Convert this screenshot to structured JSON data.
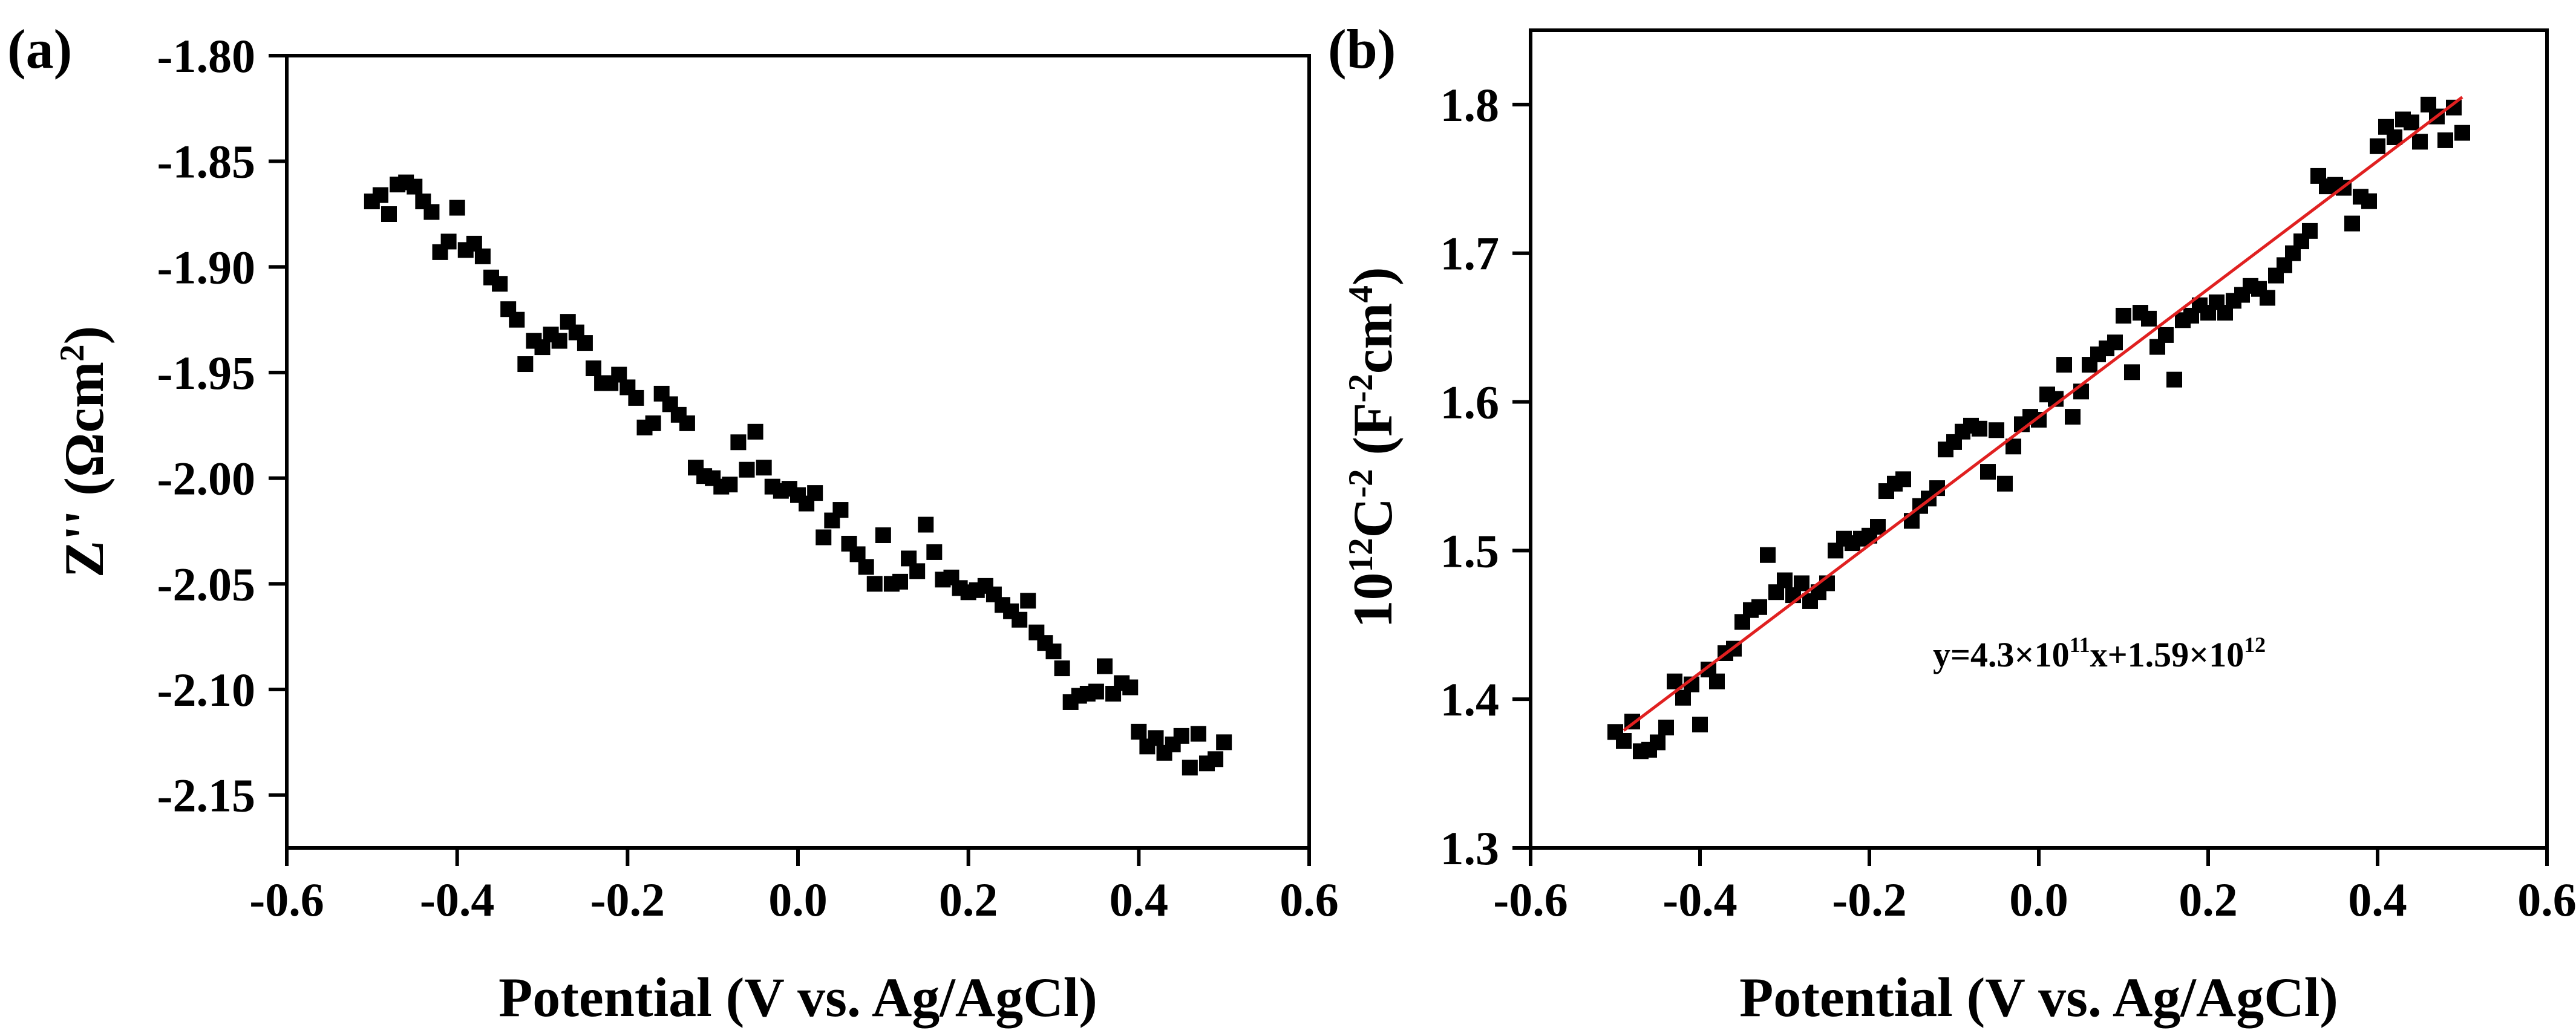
{
  "chart_data": [
    {
      "panel_label": "(a)",
      "type": "scatter",
      "xlabel": "Potential (V vs. Ag/AgCl)",
      "ylabel": "Z'' (Ωcm²)",
      "ylabel_parts": {
        "main": "Z'' (Ωcm",
        "sup": "2",
        "end": ")"
      },
      "xlim": [
        -0.6,
        0.6
      ],
      "ylim": [
        -2.175,
        -1.8
      ],
      "x_ticks": [
        -0.6,
        -0.4,
        -0.2,
        0.0,
        0.2,
        0.4,
        0.6
      ],
      "x_tick_labels": [
        "-0.6",
        "-0.4",
        "-0.2",
        "0.0",
        "0.2",
        "0.4",
        "0.6"
      ],
      "y_ticks": [
        -1.8,
        -1.85,
        -1.9,
        -1.95,
        -2.0,
        -2.05,
        -2.1,
        -2.15
      ],
      "y_tick_labels": [
        "-1.80",
        "-1.85",
        "-1.90",
        "-1.95",
        "-2.00",
        "-2.05",
        "-2.10",
        "-2.15"
      ],
      "marker_color": "#000000",
      "series": [
        {
          "name": "Z''",
          "x": [
            -0.5,
            -0.49,
            -0.48,
            -0.47,
            -0.46,
            -0.45,
            -0.44,
            -0.43,
            -0.42,
            -0.41,
            -0.4,
            -0.39,
            -0.38,
            -0.37,
            -0.36,
            -0.35,
            -0.34,
            -0.33,
            -0.32,
            -0.31,
            -0.3,
            -0.29,
            -0.28,
            -0.27,
            -0.26,
            -0.25,
            -0.24,
            -0.23,
            -0.22,
            -0.21,
            -0.2,
            -0.19,
            -0.18,
            -0.17,
            -0.16,
            -0.15,
            -0.14,
            -0.13,
            -0.12,
            -0.11,
            -0.1,
            -0.09,
            -0.08,
            -0.07,
            -0.06,
            -0.05,
            -0.04,
            -0.03,
            -0.02,
            -0.01,
            0.0,
            0.01,
            0.02,
            0.03,
            0.04,
            0.05,
            0.06,
            0.07,
            0.08,
            0.09,
            0.1,
            0.11,
            0.12,
            0.13,
            0.14,
            0.15,
            0.16,
            0.17,
            0.18,
            0.19,
            0.2,
            0.21,
            0.22,
            0.23,
            0.24,
            0.25,
            0.26,
            0.27,
            0.28,
            0.29,
            0.3,
            0.31,
            0.32,
            0.33,
            0.34,
            0.35,
            0.36,
            0.37,
            0.38,
            0.39,
            0.4,
            0.41,
            0.42,
            0.43,
            0.44,
            0.45,
            0.46,
            0.47,
            0.48,
            0.49,
            0.5
          ],
          "y": [
            -1.869,
            -1.866,
            -1.875,
            -1.861,
            -1.86,
            -1.862,
            -1.869,
            -1.874,
            -1.893,
            -1.888,
            -1.872,
            -1.892,
            -1.889,
            -1.895,
            -1.905,
            -1.908,
            -1.92,
            -1.925,
            -1.946,
            -1.935,
            -1.938,
            -1.932,
            -1.935,
            -1.926,
            -1.931,
            -1.936,
            -1.948,
            -1.955,
            -1.955,
            -1.951,
            -1.957,
            -1.962,
            -1.976,
            -1.974,
            -1.96,
            -1.965,
            -1.97,
            -1.974,
            -1.995,
            -1.999,
            -2.0,
            -2.004,
            -2.003,
            -1.983,
            -1.996,
            -1.978,
            -1.995,
            -2.004,
            -2.006,
            -2.005,
            -2.008,
            -2.012,
            -2.007,
            -2.028,
            -2.02,
            -2.015,
            -2.031,
            -2.036,
            -2.042,
            -2.05,
            -2.027,
            -2.05,
            -2.049,
            -2.038,
            -2.044,
            -2.022,
            -2.035,
            -2.048,
            -2.047,
            -2.052,
            -2.054,
            -2.053,
            -2.051,
            -2.055,
            -2.06,
            -2.063,
            -2.067,
            -2.058,
            -2.073,
            -2.078,
            -2.082,
            -2.09,
            -2.106,
            -2.103,
            -2.102,
            -2.101,
            -2.089,
            -2.102,
            -2.097,
            -2.099,
            -2.12,
            -2.127,
            -2.123,
            -2.13,
            -2.126,
            -2.122,
            -2.137,
            -2.121,
            -2.135,
            -2.133,
            -2.125
          ]
        }
      ]
    },
    {
      "panel_label": "(b)",
      "type": "scatter",
      "xlabel": "Potential (V vs. Ag/AgCl)",
      "ylabel": "10¹²C⁻² (F⁻²cm⁴)",
      "ylabel_parts": {
        "base": "10",
        "sup1": "12",
        "mid": "C",
        "sup2": "-2",
        "mid2": " (F",
        "sup3": "-2",
        "mid3": "cm",
        "sup4": "4",
        "end": ")"
      },
      "xlim": [
        -0.6,
        0.6
      ],
      "ylim": [
        1.3,
        1.85
      ],
      "x_ticks": [
        -0.6,
        -0.4,
        -0.2,
        0.0,
        0.2,
        0.4,
        0.6
      ],
      "x_tick_labels": [
        "-0.6",
        "-0.4",
        "-0.2",
        "0.0",
        "0.2",
        "0.4",
        "0.6"
      ],
      "y_ticks": [
        1.3,
        1.4,
        1.5,
        1.6,
        1.7,
        1.8
      ],
      "y_tick_labels": [
        "1.3",
        "1.4",
        "1.5",
        "1.6",
        "1.7",
        "1.8"
      ],
      "marker_color": "#000000",
      "fit_line": {
        "x": [
          -0.49,
          0.5
        ],
        "y": [
          1.379,
          1.805
        ],
        "color": "#e02020"
      },
      "annotation": {
        "text": "y=4.3×10¹¹x+1.59×10¹²",
        "parts": {
          "a": "y=4.3×10",
          "sup1": "11",
          "b": "x+1.59×10",
          "sup2": "12"
        }
      },
      "series": [
        {
          "name": "10¹²C⁻²",
          "x": [
            -0.5,
            -0.49,
            -0.48,
            -0.47,
            -0.46,
            -0.45,
            -0.44,
            -0.43,
            -0.42,
            -0.41,
            -0.4,
            -0.39,
            -0.38,
            -0.37,
            -0.36,
            -0.35,
            -0.34,
            -0.33,
            -0.32,
            -0.31,
            -0.3,
            -0.29,
            -0.28,
            -0.27,
            -0.26,
            -0.25,
            -0.24,
            -0.23,
            -0.22,
            -0.21,
            -0.2,
            -0.19,
            -0.18,
            -0.17,
            -0.16,
            -0.15,
            -0.14,
            -0.13,
            -0.12,
            -0.11,
            -0.1,
            -0.09,
            -0.08,
            -0.07,
            -0.06,
            -0.05,
            -0.04,
            -0.03,
            -0.02,
            -0.01,
            0.0,
            0.01,
            0.02,
            0.03,
            0.04,
            0.05,
            0.06,
            0.07,
            0.08,
            0.09,
            0.1,
            0.11,
            0.12,
            0.13,
            0.14,
            0.15,
            0.16,
            0.17,
            0.18,
            0.19,
            0.2,
            0.21,
            0.22,
            0.23,
            0.24,
            0.25,
            0.26,
            0.27,
            0.28,
            0.29,
            0.3,
            0.31,
            0.32,
            0.33,
            0.34,
            0.35,
            0.36,
            0.37,
            0.38,
            0.39,
            0.4,
            0.41,
            0.42,
            0.43,
            0.44,
            0.45,
            0.46,
            0.47,
            0.48,
            0.49,
            0.5
          ],
          "y": [
            1.378,
            1.372,
            1.385,
            1.365,
            1.366,
            1.371,
            1.381,
            1.412,
            1.401,
            1.41,
            1.383,
            1.42,
            1.412,
            1.431,
            1.434,
            1.452,
            1.46,
            1.462,
            1.497,
            1.472,
            1.48,
            1.47,
            1.478,
            1.466,
            1.472,
            1.478,
            1.5,
            1.508,
            1.505,
            1.508,
            1.51,
            1.516,
            1.54,
            1.545,
            1.548,
            1.52,
            1.53,
            1.535,
            1.542,
            1.568,
            1.573,
            1.58,
            1.584,
            1.582,
            1.553,
            1.581,
            1.545,
            1.57,
            1.585,
            1.59,
            1.588,
            1.605,
            1.602,
            1.625,
            1.59,
            1.607,
            1.625,
            1.632,
            1.636,
            1.64,
            1.658,
            1.62,
            1.66,
            1.656,
            1.637,
            1.645,
            1.615,
            1.655,
            1.658,
            1.665,
            1.66,
            1.667,
            1.66,
            1.668,
            1.672,
            1.678,
            1.676,
            1.67,
            1.685,
            1.692,
            1.7,
            1.708,
            1.715,
            1.752,
            1.745,
            1.746,
            1.744,
            1.72,
            1.738,
            1.735,
            1.772,
            1.785,
            1.778,
            1.79,
            1.788,
            1.775,
            1.8,
            1.792,
            1.776,
            1.798,
            1.781
          ]
        }
      ]
    }
  ]
}
